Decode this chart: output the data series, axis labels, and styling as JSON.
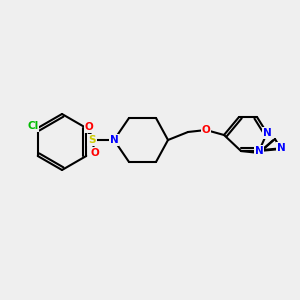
{
  "bg_color": "#efefef",
  "bond_color": "#000000",
  "bond_width": 1.5,
  "atom_colors": {
    "N": "#0000ff",
    "O": "#ff0000",
    "S": "#cccc00",
    "Cl": "#00bb00"
  },
  "font_size": 7.5,
  "font_size_small": 6.5
}
